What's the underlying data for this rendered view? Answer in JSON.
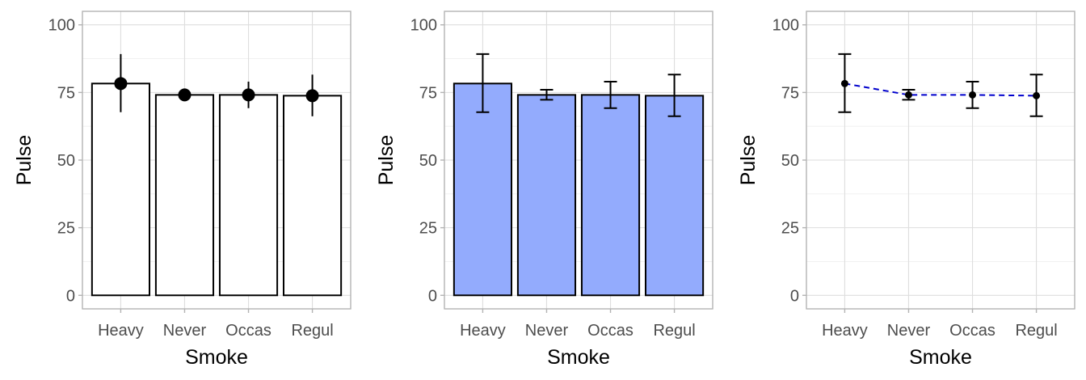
{
  "chart_data": [
    {
      "type": "bar",
      "style": "bar-with-point-linerange",
      "categories": [
        "Heavy",
        "Never",
        "Occas",
        "Regul"
      ],
      "values": [
        78.3,
        74.1,
        74.1,
        73.8
      ],
      "error_low": [
        67.7,
        72.3,
        69.2,
        66.2
      ],
      "error_high": [
        89.2,
        76.0,
        79.0,
        81.6
      ],
      "xlabel": "Smoke",
      "ylabel": "Pulse",
      "yticks": [
        0,
        25,
        50,
        75,
        100
      ],
      "ylim": [
        -5,
        105
      ],
      "bar_fill": "#ffffff",
      "bar_stroke": "#000000",
      "point_color": "#000000",
      "grid": true,
      "legend": "none"
    },
    {
      "type": "bar",
      "style": "bar-with-errorbar",
      "categories": [
        "Heavy",
        "Never",
        "Occas",
        "Regul"
      ],
      "values": [
        78.3,
        74.1,
        74.1,
        73.8
      ],
      "error_low": [
        67.7,
        72.3,
        69.2,
        66.2
      ],
      "error_high": [
        89.2,
        76.0,
        79.0,
        81.6
      ],
      "xlabel": "Smoke",
      "ylabel": "Pulse",
      "yticks": [
        0,
        25,
        50,
        75,
        100
      ],
      "ylim": [
        -5,
        105
      ],
      "bar_fill": "#93abfd",
      "bar_stroke": "#000000",
      "grid": true,
      "legend": "none"
    },
    {
      "type": "line",
      "style": "dashed-line-points-errorbar",
      "categories": [
        "Heavy",
        "Never",
        "Occas",
        "Regul"
      ],
      "values": [
        78.3,
        74.1,
        74.1,
        73.8
      ],
      "error_low": [
        67.7,
        72.3,
        69.2,
        66.2
      ],
      "error_high": [
        89.2,
        76.0,
        79.0,
        81.6
      ],
      "xlabel": "Smoke",
      "ylabel": "Pulse",
      "yticks": [
        0,
        25,
        50,
        75,
        100
      ],
      "ylim": [
        -5,
        105
      ],
      "line_color": "#0000cc",
      "point_color": "#000000",
      "grid": true,
      "legend": "none"
    }
  ]
}
